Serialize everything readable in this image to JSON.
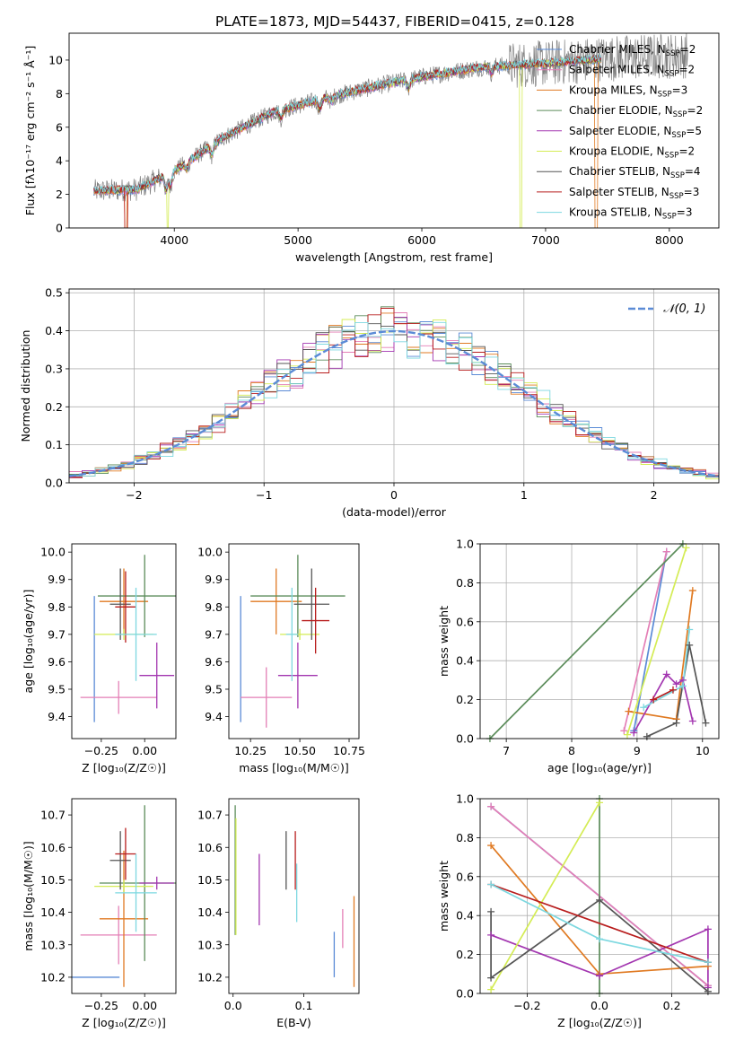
{
  "title": "PLATE=1873, MJD=54437, FIBERID=0415, z=0.128",
  "colors": {
    "chab_miles": "#5b8bd6",
    "salp_miles": "#e47fb6",
    "krou_miles": "#e07a22",
    "chab_elodie": "#5b8c5a",
    "salp_elodie": "#a336b0",
    "krou_elodie": "#d4ec55",
    "chab_stelib": "#555555",
    "salp_stelib": "#b81d1d",
    "krou_stelib": "#7dd8e0",
    "data": "#808080",
    "gaussian": "#5b8bd6"
  },
  "legend_models": [
    {
      "name": "Chabrier MILES",
      "n": "2",
      "color": "#5b8bd6"
    },
    {
      "name": "Salpeter MILES",
      "n": "2",
      "color": "#e47fb6"
    },
    {
      "name": "Kroupa MILES",
      "n": "3",
      "color": "#e07a22"
    },
    {
      "name": "Chabrier ELODIE",
      "n": "2",
      "color": "#5b8c5a"
    },
    {
      "name": "Salpeter ELODIE",
      "n": "5",
      "color": "#a336b0"
    },
    {
      "name": "Kroupa ELODIE",
      "n": "2",
      "color": "#d4ec55"
    },
    {
      "name": "Chabrier STELIB",
      "n": "4",
      "color": "#555555"
    },
    {
      "name": "Salpeter STELIB",
      "n": "3",
      "color": "#b81d1d"
    },
    {
      "name": "Kroupa STELIB",
      "n": "3",
      "color": "#7dd8e0"
    }
  ],
  "legend_nssp": "SSP",
  "legend_gauss": "𝒩(0, 1)",
  "chart_data": [
    {
      "id": "spectrum",
      "type": "line",
      "xlabel": "wavelength [Angstrom, rest frame]",
      "ylabel": "Flux [fλ10⁻¹⁷ erg cm⁻² s⁻¹ Å⁻¹]",
      "xlim": [
        3150,
        8400
      ],
      "ylim": [
        0,
        11.6
      ],
      "xticks": [
        4000,
        5000,
        6000,
        7000,
        8000
      ],
      "yticks": [
        0,
        2,
        4,
        6,
        8,
        10
      ],
      "grid": false,
      "continuum": {
        "x": [
          3350,
          3700,
          4000,
          4400,
          4800,
          5200,
          5600,
          6000,
          6500,
          7000,
          7500,
          8150
        ],
        "y": [
          2.2,
          2.3,
          3.4,
          5.4,
          6.9,
          7.7,
          8.4,
          9.0,
          9.6,
          9.8,
          10.1,
          10.3
        ]
      },
      "model_range_x": [
        3350,
        7450
      ],
      "data_range_x": [
        3350,
        8150
      ]
    },
    {
      "id": "residuals",
      "type": "histogram",
      "xlabel": "(data-model)/error",
      "ylabel": "Normed distribution",
      "xlim": [
        -2.5,
        2.5
      ],
      "ylim": [
        0,
        0.51
      ],
      "xticks": [
        -2,
        -1,
        0,
        1,
        2
      ],
      "yticks": [
        0,
        0.1,
        0.2,
        0.3,
        0.4,
        0.5
      ],
      "grid": true,
      "bin_width": 0.1,
      "gaussian": {
        "mu": 0,
        "sigma": 1,
        "style": "dashed"
      }
    },
    {
      "id": "age_vs_Z",
      "type": "errorbar",
      "xlabel": "Z [log₁₀(Z/Z☉)]",
      "ylabel": "age  [log₁₀(age/yr)]",
      "xlim": [
        -0.42,
        0.18
      ],
      "ylim": [
        9.32,
        10.03
      ],
      "xticks": [
        -0.25,
        0.0
      ],
      "xticklabels": [
        "−0.25",
        "0.00"
      ],
      "yticks": [
        9.4,
        9.5,
        9.6,
        9.7,
        9.8,
        9.9,
        10.0
      ],
      "grid": false,
      "points": [
        {
          "c": "chab_miles",
          "x": -0.29,
          "xerr": 0.0,
          "y": 9.61,
          "yerr": 0.23
        },
        {
          "c": "salp_miles",
          "x": -0.15,
          "xerr": 0.22,
          "y": 9.47,
          "yerr": 0.06
        },
        {
          "c": "krou_miles",
          "x": -0.12,
          "xerr": 0.14,
          "y": 9.82,
          "yerr": 0.12
        },
        {
          "c": "chab_elodie",
          "x": 0.0,
          "xerr": 0.27,
          "y": 9.84,
          "yerr": 0.15
        },
        {
          "c": "salp_elodie",
          "x": 0.07,
          "xerr": 0.1,
          "y": 9.55,
          "yerr": 0.12
        },
        {
          "c": "krou_elodie",
          "x": -0.12,
          "xerr": 0.17,
          "y": 9.7,
          "yerr": 0.02
        },
        {
          "c": "chab_stelib",
          "x": -0.14,
          "xerr": 0.06,
          "y": 9.81,
          "yerr": 0.13
        },
        {
          "c": "salp_stelib",
          "x": -0.11,
          "xerr": 0.06,
          "y": 9.8,
          "yerr": 0.13
        },
        {
          "c": "krou_stelib",
          "x": -0.05,
          "xerr": 0.12,
          "y": 9.7,
          "yerr": 0.17
        }
      ]
    },
    {
      "id": "age_vs_mass",
      "type": "errorbar",
      "xlabel": "mass [log₁₀(M/M☉)]",
      "ylabel": "",
      "xlim": [
        10.14,
        10.8
      ],
      "ylim": [
        9.32,
        10.03
      ],
      "xticks": [
        10.25,
        10.5,
        10.75
      ],
      "xticklabels": [
        "10.25",
        "10.50",
        "10.75"
      ],
      "yticks": [
        9.4,
        9.5,
        9.6,
        9.7,
        9.8,
        9.9,
        10.0
      ],
      "grid": false,
      "points": [
        {
          "c": "chab_miles",
          "x": 10.2,
          "xerr": 0.0,
          "y": 9.61,
          "yerr": 0.23
        },
        {
          "c": "salp_miles",
          "x": 10.33,
          "xerr": 0.13,
          "y": 9.47,
          "yerr": 0.11
        },
        {
          "c": "krou_miles",
          "x": 10.38,
          "xerr": 0.13,
          "y": 9.82,
          "yerr": 0.12
        },
        {
          "c": "chab_elodie",
          "x": 10.49,
          "xerr": 0.24,
          "y": 9.84,
          "yerr": 0.15
        },
        {
          "c": "salp_elodie",
          "x": 10.49,
          "xerr": 0.1,
          "y": 9.55,
          "yerr": 0.12
        },
        {
          "c": "krou_elodie",
          "x": 10.5,
          "xerr": 0.1,
          "y": 9.7,
          "yerr": 0.02
        },
        {
          "c": "chab_stelib",
          "x": 10.56,
          "xerr": 0.09,
          "y": 9.81,
          "yerr": 0.13
        },
        {
          "c": "salp_stelib",
          "x": 10.58,
          "xerr": 0.07,
          "y": 9.75,
          "yerr": 0.12
        },
        {
          "c": "krou_stelib",
          "x": 10.46,
          "xerr": 0.03,
          "y": 9.7,
          "yerr": 0.17
        }
      ]
    },
    {
      "id": "weight_vs_age",
      "type": "line",
      "xlabel": "age  [log₁₀(age/yr)]",
      "ylabel": "mass weight",
      "xlim": [
        6.6,
        10.25
      ],
      "ylim": [
        0,
        1
      ],
      "xticks": [
        7,
        8,
        9,
        10
      ],
      "yticks": [
        0,
        0.2,
        0.4,
        0.6,
        0.8,
        1.0
      ],
      "grid": true,
      "series": [
        {
          "c": "chab_miles",
          "x": [
            8.95,
            9.45
          ],
          "y": [
            0.04,
            0.96
          ]
        },
        {
          "c": "salp_miles",
          "x": [
            8.8,
            9.45
          ],
          "y": [
            0.04,
            0.96
          ]
        },
        {
          "c": "krou_miles",
          "x": [
            8.87,
            9.6,
            9.85
          ],
          "y": [
            0.14,
            0.1,
            0.76
          ]
        },
        {
          "c": "chab_elodie",
          "x": [
            6.75,
            9.7
          ],
          "y": [
            0.0,
            1.0
          ]
        },
        {
          "c": "salp_elodie",
          "x": [
            8.95,
            9.45,
            9.6,
            9.7,
            9.85
          ],
          "y": [
            0.03,
            0.33,
            0.28,
            0.3,
            0.09
          ]
        },
        {
          "c": "krou_elodie",
          "x": [
            8.85,
            9.75
          ],
          "y": [
            0.02,
            0.98
          ]
        },
        {
          "c": "chab_stelib",
          "x": [
            9.15,
            9.6,
            9.8,
            10.05
          ],
          "y": [
            0.01,
            0.08,
            0.48,
            0.08
          ]
        },
        {
          "c": "salp_stelib",
          "x": [
            9.25,
            9.55
          ],
          "y": [
            0.2,
            0.25
          ]
        },
        {
          "c": "krou_stelib",
          "x": [
            9.1,
            9.7,
            9.8
          ],
          "y": [
            0.16,
            0.27,
            0.56
          ]
        }
      ]
    },
    {
      "id": "mass_vs_Z",
      "type": "errorbar",
      "xlabel": "Z [log₁₀(Z/Z☉)]",
      "ylabel": "mass [log₁₀(M/M☉)]",
      "xlim": [
        -0.42,
        0.18
      ],
      "ylim": [
        10.15,
        10.75
      ],
      "xticks": [
        -0.25,
        0.0
      ],
      "xticklabels": [
        "−0.25",
        "0.00"
      ],
      "yticks": [
        10.2,
        10.3,
        10.4,
        10.5,
        10.6,
        10.7
      ],
      "grid": false,
      "points": [
        {
          "c": "chab_miles",
          "x": -0.3,
          "xerr": 0.0,
          "y": 10.2,
          "yerr": 0.0
        },
        {
          "c": "salp_miles",
          "x": -0.15,
          "xerr": 0.22,
          "y": 10.33,
          "yerr": 0.09
        },
        {
          "c": "krou_miles",
          "x": -0.12,
          "xerr": 0.14,
          "y": 10.38,
          "yerr": 0.21
        },
        {
          "c": "chab_elodie",
          "x": 0.0,
          "xerr": 0.26,
          "y": 10.49,
          "yerr": 0.24
        },
        {
          "c": "salp_elodie",
          "x": 0.07,
          "xerr": 0.1,
          "y": 10.49,
          "yerr": 0.02
        },
        {
          "c": "krou_elodie",
          "x": -0.12,
          "xerr": 0.17,
          "y": 10.48,
          "yerr": 0.02
        },
        {
          "c": "chab_stelib",
          "x": -0.14,
          "xerr": 0.06,
          "y": 10.56,
          "yerr": 0.09
        },
        {
          "c": "salp_stelib",
          "x": -0.11,
          "xerr": 0.06,
          "y": 10.58,
          "yerr": 0.08
        },
        {
          "c": "krou_stelib",
          "x": -0.05,
          "xerr": 0.12,
          "y": 10.46,
          "yerr": 0.12
        }
      ]
    },
    {
      "id": "mass_vs_ebv",
      "type": "errorbar",
      "xlabel": "E(B-V)",
      "ylabel": "",
      "xlim": [
        -0.006,
        0.178
      ],
      "ylim": [
        10.15,
        10.75
      ],
      "xticks": [
        0.0,
        0.1
      ],
      "xticklabels": [
        "0.0",
        "0.1"
      ],
      "yticks": [
        10.2,
        10.3,
        10.4,
        10.5,
        10.6,
        10.7
      ],
      "grid": false,
      "points": [
        {
          "c": "chab_miles",
          "x": 0.143,
          "xerr": 0.0,
          "y": 10.27,
          "yerr": 0.07
        },
        {
          "c": "salp_miles",
          "x": 0.155,
          "xerr": 0.0,
          "y": 10.35,
          "yerr": 0.06
        },
        {
          "c": "krou_miles",
          "x": 0.171,
          "xerr": 0.0,
          "y": 10.31,
          "yerr": 0.14
        },
        {
          "c": "chab_elodie",
          "x": 0.003,
          "xerr": 0.0,
          "y": 10.53,
          "yerr": 0.2
        },
        {
          "c": "salp_elodie",
          "x": 0.037,
          "xerr": 0.0,
          "y": 10.47,
          "yerr": 0.11
        },
        {
          "c": "krou_elodie",
          "x": 0.004,
          "xerr": 0.0,
          "y": 10.51,
          "yerr": 0.18
        },
        {
          "c": "chab_stelib",
          "x": 0.075,
          "xerr": 0.0,
          "y": 10.56,
          "yerr": 0.09
        },
        {
          "c": "salp_stelib",
          "x": 0.088,
          "xerr": 0.0,
          "y": 10.56,
          "yerr": 0.09
        },
        {
          "c": "krou_stelib",
          "x": 0.09,
          "xerr": 0.0,
          "y": 10.46,
          "yerr": 0.09
        }
      ]
    },
    {
      "id": "weight_vs_Z",
      "type": "line",
      "xlabel": "Z [log₁₀(Z/Z☉)]",
      "ylabel": "mass weight",
      "xlim": [
        -0.33,
        0.33
      ],
      "ylim": [
        0,
        1
      ],
      "xticks": [
        -0.2,
        0.0,
        0.2
      ],
      "xticklabels": [
        "−0.2",
        "0.0",
        "0.2"
      ],
      "yticks": [
        0,
        0.2,
        0.4,
        0.6,
        0.8,
        1.0
      ],
      "grid": true,
      "series": [
        {
          "c": "chab_miles",
          "x": [
            -0.3,
            0.3
          ],
          "y": [
            0.96,
            0.04
          ]
        },
        {
          "c": "salp_miles",
          "x": [
            -0.3,
            0.3
          ],
          "y": [
            0.96,
            0.04
          ]
        },
        {
          "c": "krou_miles",
          "x": [
            -0.3,
            0.0,
            0.3
          ],
          "y": [
            0.76,
            0.1,
            0.14
          ]
        },
        {
          "c": "chab_elodie",
          "x": [
            0.0,
            0.0
          ],
          "y": [
            0.0,
            1.0
          ]
        },
        {
          "c": "salp_elodie",
          "x": [
            -0.3,
            0.0,
            0.3,
            0.3
          ],
          "y": [
            0.3,
            0.09,
            0.33,
            0.03
          ]
        },
        {
          "c": "krou_elodie",
          "x": [
            -0.3,
            0.0
          ],
          "y": [
            0.02,
            0.98
          ]
        },
        {
          "c": "chab_stelib",
          "x": [
            -0.3,
            -0.3,
            0.0,
            0.3
          ],
          "y": [
            0.42,
            0.08,
            0.48,
            0.01
          ]
        },
        {
          "c": "salp_stelib",
          "x": [
            -0.3,
            0.3
          ],
          "y": [
            0.56,
            0.16
          ]
        },
        {
          "c": "krou_stelib",
          "x": [
            -0.3,
            0.0,
            0.3
          ],
          "y": [
            0.56,
            0.28,
            0.16
          ]
        }
      ]
    }
  ]
}
